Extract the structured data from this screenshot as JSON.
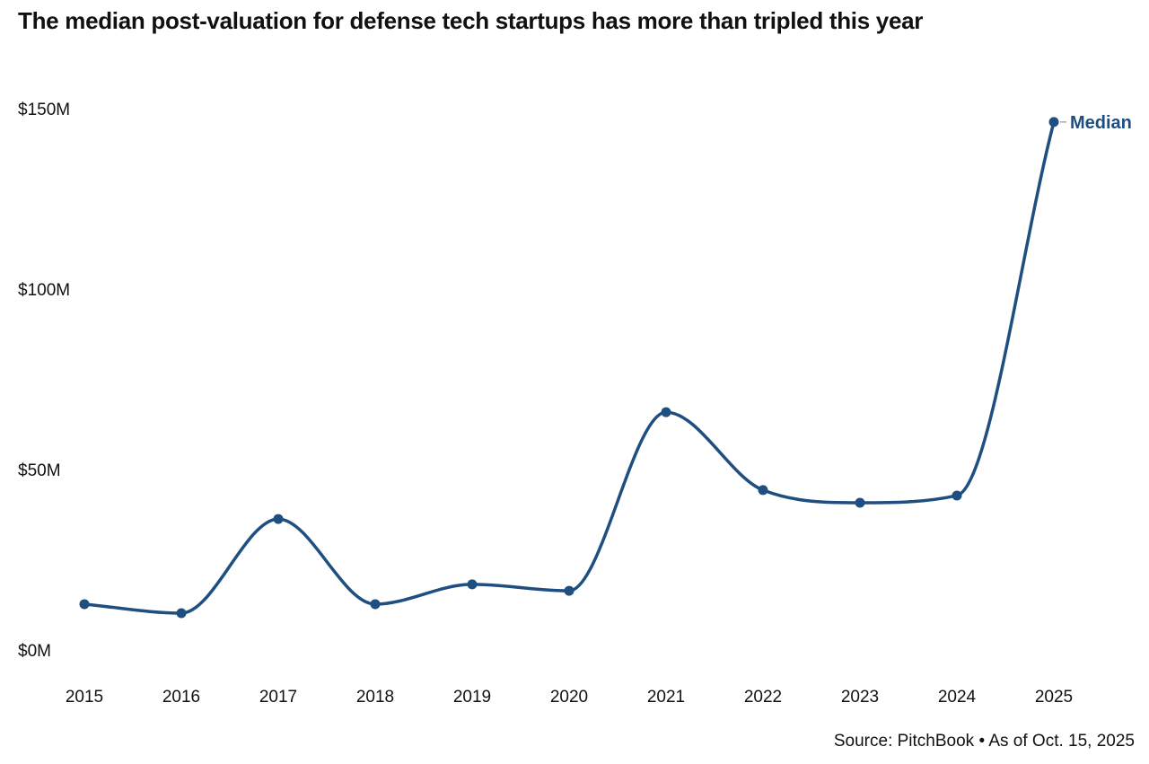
{
  "chart_data": {
    "type": "line",
    "title": "The median post-valuation for defense tech startups has more than tripled this year",
    "source": "Source: PitchBook • As of Oct. 15, 2025",
    "x": [
      2015,
      2016,
      2017,
      2018,
      2019,
      2020,
      2021,
      2022,
      2023,
      2024,
      2025
    ],
    "x_tick_labels": [
      "2015",
      "2016",
      "2017",
      "2018",
      "2019",
      "2020",
      "2021",
      "2022",
      "2023",
      "2024",
      "2025"
    ],
    "y_tick_labels": [
      "$0M",
      "$50M",
      "$100M",
      "$150M"
    ],
    "y_ticks": [
      0,
      50,
      100,
      150
    ],
    "ylim": [
      0,
      150
    ],
    "ylabel": "",
    "xlabel": "",
    "grid": false,
    "series": [
      {
        "name": "Median",
        "color": "#1f4e80",
        "values": [
          12.7,
          10.2,
          36.3,
          12.7,
          18.2,
          16.4,
          65.9,
          44.3,
          40.8,
          42.8,
          146.3
        ]
      }
    ]
  }
}
